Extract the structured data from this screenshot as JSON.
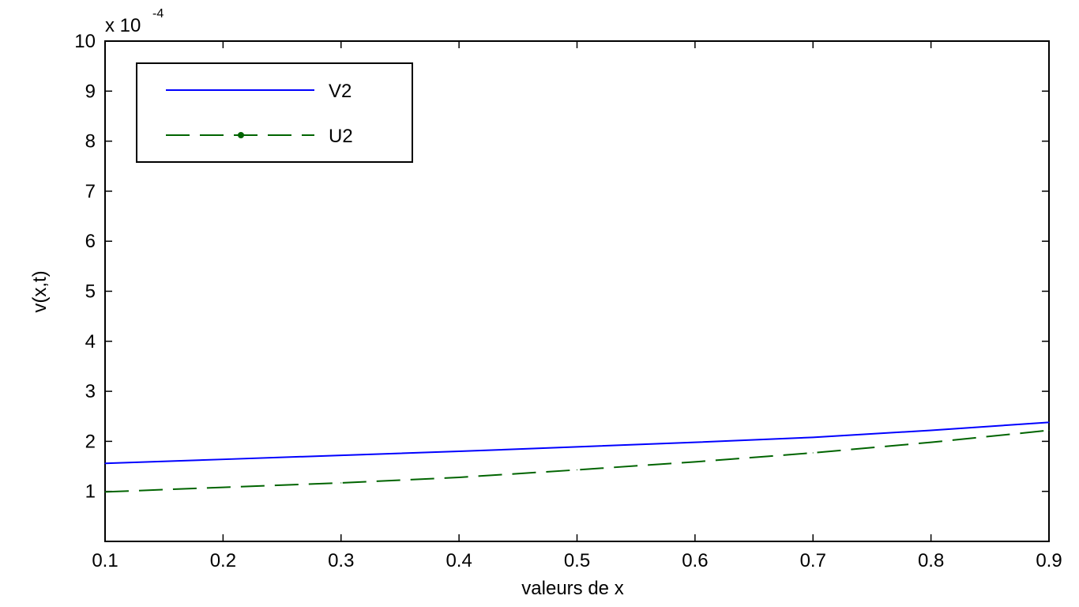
{
  "chart_data": {
    "type": "line",
    "xlabel": "valeurs de x",
    "ylabel": "v(x,t)",
    "y_multiplier": {
      "base": "x 10",
      "exponent": "-4"
    },
    "xlim": [
      0.1,
      0.9
    ],
    "ylim": [
      0,
      10
    ],
    "x_ticks": [
      "0.1",
      "0.2",
      "0.3",
      "0.4",
      "0.5",
      "0.6",
      "0.7",
      "0.8",
      "0.9"
    ],
    "y_ticks": [
      "1",
      "2",
      "3",
      "4",
      "5",
      "6",
      "7",
      "8",
      "9",
      "10"
    ],
    "grid": false,
    "legend_position": "top-left",
    "x": [
      0.1,
      0.2,
      0.3,
      0.4,
      0.5,
      0.6,
      0.7,
      0.8,
      0.9
    ],
    "series": [
      {
        "name": "V2",
        "color": "#0000ff",
        "style": "solid",
        "values": [
          1.56,
          1.64,
          1.72,
          1.8,
          1.89,
          1.98,
          2.08,
          2.22,
          2.38
        ]
      },
      {
        "name": "U2",
        "color": "#006400",
        "style": "dashed",
        "marker": "dot",
        "values": [
          0.99,
          1.08,
          1.17,
          1.28,
          1.43,
          1.59,
          1.77,
          1.98,
          2.22
        ]
      }
    ]
  }
}
